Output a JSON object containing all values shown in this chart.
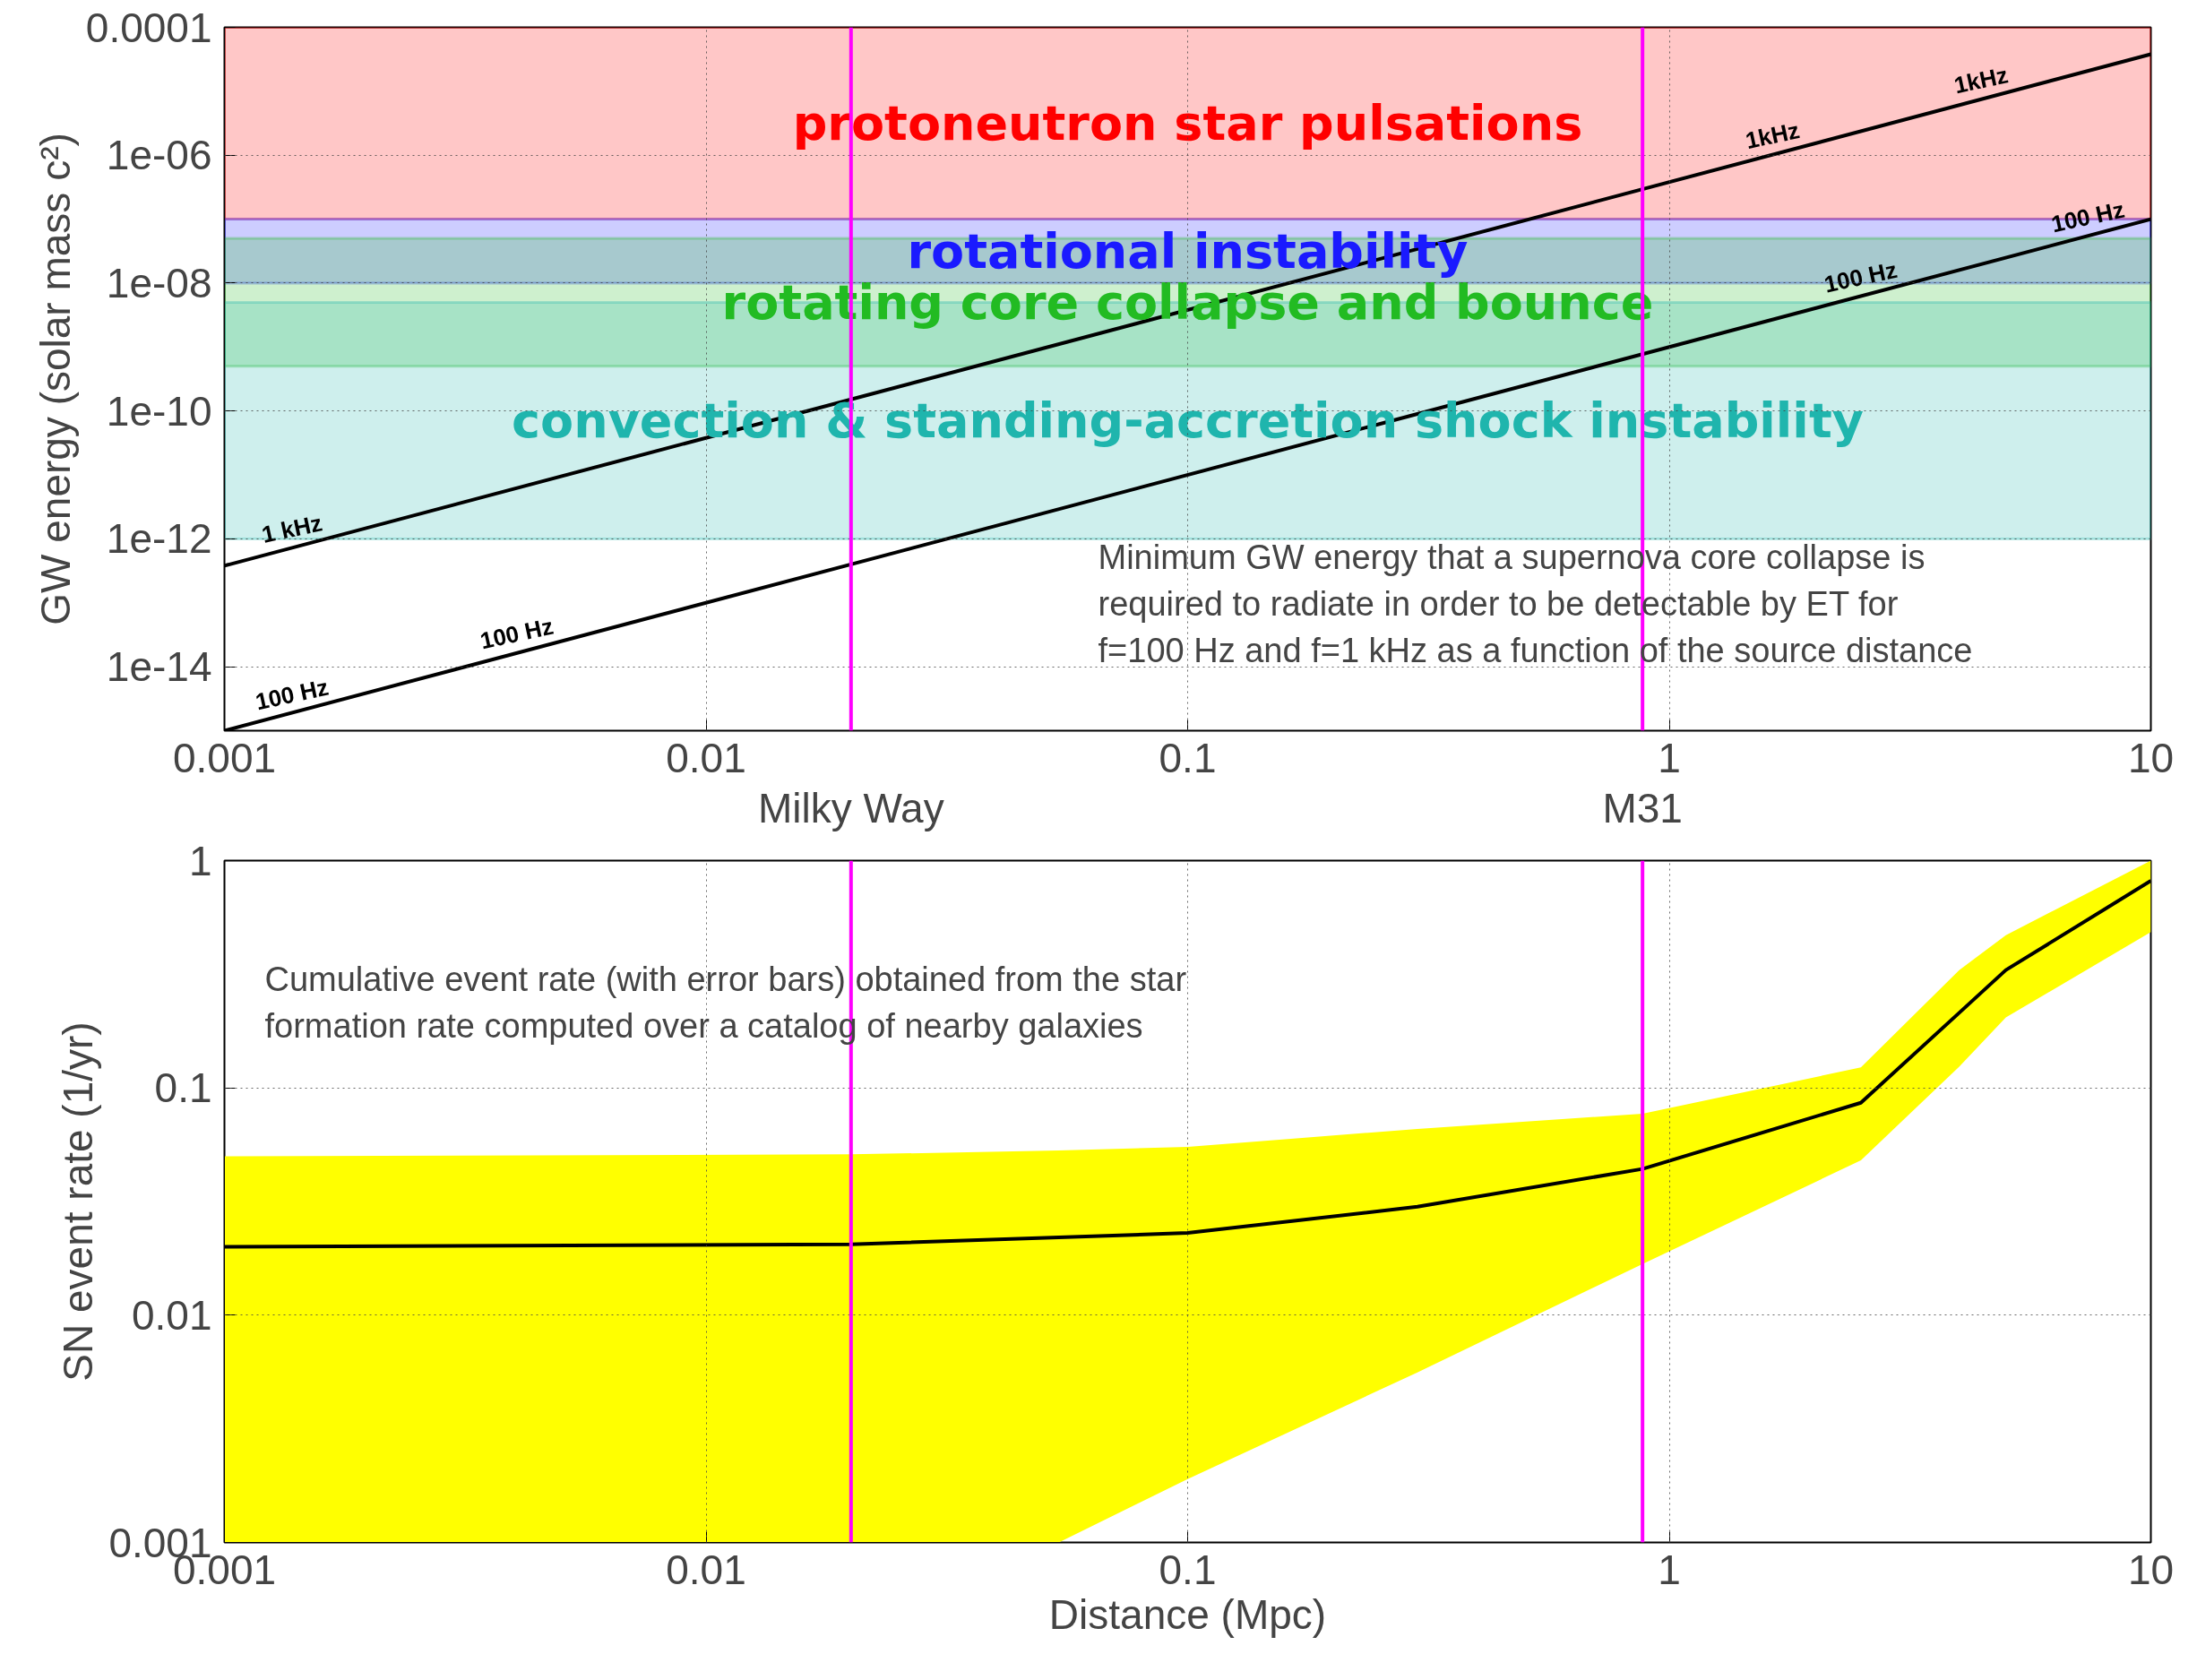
{
  "chart_data": [
    {
      "type": "line",
      "ylabel": "GW energy (solar mass c²)",
      "log": "xy",
      "grid": true,
      "line_style": "solid",
      "marker": "none",
      "xlim": [
        0.001,
        10
      ],
      "ylim": [
        1e-15,
        0.0001
      ],
      "xticks": [
        0.001,
        0.01,
        0.1,
        1,
        10
      ],
      "yticks": [
        {
          "value": 0.0001,
          "label": "0.0001"
        },
        {
          "value": 1e-06,
          "label": "1e-06"
        },
        {
          "value": 1e-08,
          "label": "1e-08"
        },
        {
          "value": 1e-10,
          "label": "1e-10"
        },
        {
          "value": 1e-12,
          "label": "1e-12"
        },
        {
          "value": 1e-14,
          "label": "1e-14"
        }
      ],
      "series": [
        {
          "color": "#000000",
          "x": [
            0.001,
            10
          ],
          "values": [
            3.8e-13,
            3.8e-05
          ]
        },
        {
          "color": "#000000",
          "x": [
            0.001,
            10
          ],
          "values": [
            1e-15,
            1e-07
          ]
        }
      ],
      "bands": [
        {
          "axis": "y",
          "from": 1e-07,
          "to": 0.0001,
          "label": "protoneutron star pulsations",
          "color": "#ff0000"
        },
        {
          "axis": "y",
          "from": 1e-08,
          "to": 1e-07,
          "label": "rotational instability",
          "color": "#1a1aff"
        },
        {
          "axis": "y",
          "from": 5e-10,
          "to": 5e-08,
          "label": "rotating core collapse and bounce",
          "color": "#22bb22"
        },
        {
          "axis": "y",
          "from": 1e-12,
          "to": 5e-09,
          "label": "convection & standing-accretion shock instability",
          "color": "#1fb5ad"
        }
      ],
      "ref_lines": [
        {
          "axis": "x",
          "value": 0.02,
          "label": "Milky Way",
          "color": "#ff00ff"
        },
        {
          "axis": "x",
          "value": 0.88,
          "label": "M31",
          "color": "#ff00ff"
        }
      ],
      "annotations": [
        {
          "text": "1 kHz",
          "x": 0.0014,
          "y": 7.4e-13
        },
        {
          "text": "1kHz",
          "x": 1.66,
          "y": 1.05e-06
        },
        {
          "text": "1kHz",
          "x": 4.5,
          "y": 7.7e-06
        },
        {
          "text": "100 Hz",
          "x": 0.0014,
          "y": 1.9e-15
        },
        {
          "text": "100 Hz",
          "x": 0.0041,
          "y": 1.7e-14
        },
        {
          "text": "100 Hz",
          "x": 2.53,
          "y": 6.4e-09
        },
        {
          "text": "100 Hz",
          "x": 7.5,
          "y": 5.6e-08
        },
        "Minimum GW energy that a supernova core collapse is\nrequired to radiate in order to be detectable by ET for\nf=100 Hz and f=1 kHz as a function of the source distance"
      ]
    },
    {
      "type": "line",
      "xlabel": "Distance (Mpc)",
      "ylabel": "SN event rate (1/yr)",
      "log": "xy",
      "grid": true,
      "line_style": "solid",
      "marker": "none",
      "xlim": [
        0.001,
        10
      ],
      "ylim": [
        0.001,
        1
      ],
      "xticks": [
        0.001,
        0.01,
        0.1,
        1,
        10
      ],
      "yticks": [
        0.001,
        0.01,
        0.1,
        1
      ],
      "series": [
        {
          "color": "#000000",
          "x": [
            0.001,
            0.02,
            0.054,
            0.1,
            0.3,
            0.88,
            2.5,
            4,
            5,
            10
          ],
          "values": [
            0.02,
            0.0205,
            0.022,
            0.023,
            0.03,
            0.044,
            0.086,
            0.214,
            0.33,
            0.815
          ],
          "lower": [
            0.001,
            0.001,
            0.001,
            0.0019,
            0.0056,
            0.0168,
            0.048,
            0.124,
            0.204,
            0.485
          ],
          "upper": [
            0.05,
            0.051,
            0.053,
            0.055,
            0.066,
            0.077,
            0.123,
            0.33,
            0.47,
            1
          ]
        }
      ],
      "ref_lines": [
        {
          "axis": "x",
          "value": 0.02,
          "color": "#ff00ff"
        },
        {
          "axis": "x",
          "value": 0.88,
          "color": "#ff00ff"
        }
      ],
      "annotations": [
        "Cumulative event rate (with error bars) obtained from the star\nformation rate computed over a catalog of nearby galaxies"
      ]
    }
  ]
}
